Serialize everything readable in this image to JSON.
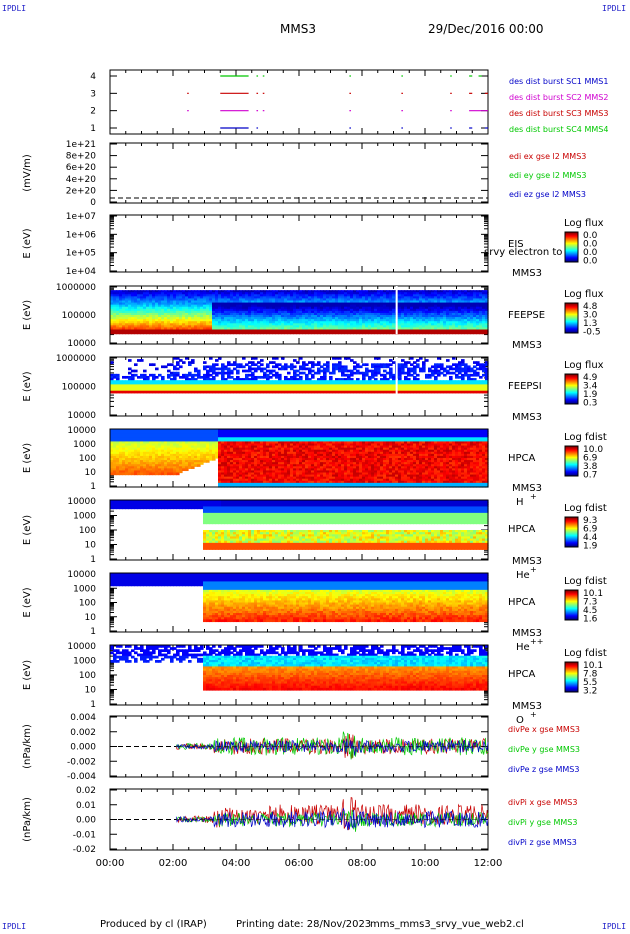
{
  "corner_labels": [
    "IPDLI",
    "IPDLI",
    "IPDLI",
    "IPDLI"
  ],
  "header": {
    "spacecraft": "MMS3",
    "date": "29/Dec/2016 00:00"
  },
  "footer": {
    "produced_by": "Produced by cl (IRAP)",
    "printing_date": "Printing date: 28/Nov/2023",
    "filename": "mms_mms3_srvy_vue_web2.cl"
  },
  "colors": {
    "c1": "#0000c8",
    "c2": "#c80000",
    "c3": "#d000d0",
    "c4": "#00c800",
    "black": "#000000"
  },
  "time_axis": {
    "start": "00:00",
    "end": "12:00",
    "ticks": [
      "00:00",
      "02:00",
      "04:00",
      "06:00",
      "08:00",
      "10:00",
      "12:00"
    ]
  },
  "chart_data": [
    {
      "id": "burst",
      "type": "scatter",
      "yticks": [
        "4",
        "3",
        "2",
        "1"
      ],
      "series": [
        {
          "name": "des dist burst SC1 MMS1",
          "color": "#0000c8",
          "y": 1,
          "segments": [
            [
              3.5,
              4.4
            ],
            [
              4.65,
              4.7
            ],
            [
              7.6,
              7.65
            ],
            [
              9.25,
              9.3
            ],
            [
              10.8,
              10.85
            ],
            [
              11.4,
              11.5
            ],
            [
              11.9,
              12
            ]
          ]
        },
        {
          "name": "des dist burst SC2 MMS2",
          "color": "#d000d0",
          "y": 2,
          "segments": [
            [
              2.45,
              2.5
            ],
            [
              3.5,
              4.4
            ],
            [
              4.65,
              4.7
            ],
            [
              4.85,
              4.9
            ],
            [
              7.6,
              7.65
            ],
            [
              9.25,
              9.3
            ],
            [
              10.8,
              10.85
            ],
            [
              11.4,
              12
            ]
          ]
        },
        {
          "name": "des dist burst SC3 MMS3",
          "color": "#c80000",
          "y": 3,
          "segments": [
            [
              2.45,
              2.5
            ],
            [
              3.5,
              4.4
            ],
            [
              4.65,
              4.7
            ],
            [
              4.85,
              4.9
            ],
            [
              7.6,
              7.65
            ],
            [
              9.25,
              9.3
            ],
            [
              10.8,
              10.85
            ],
            [
              11.4,
              11.5
            ],
            [
              11.9,
              12
            ]
          ]
        },
        {
          "name": "des dist burst SC4 MMS4",
          "color": "#00c800",
          "y": 4,
          "segments": [
            [
              3.5,
              4.4
            ],
            [
              4.65,
              4.7
            ],
            [
              4.85,
              4.9
            ],
            [
              7.6,
              7.65
            ],
            [
              9.25,
              9.3
            ],
            [
              10.8,
              10.85
            ],
            [
              11.4,
              11.5
            ],
            [
              11.7,
              11.8
            ]
          ]
        }
      ]
    },
    {
      "id": "edi",
      "type": "line",
      "ylabel": "(mV/m)",
      "yticks": [
        "1e+21",
        "8e+20",
        "6e+20",
        "4e+20",
        "2e+20",
        "0"
      ],
      "series_labels": [
        {
          "name": "edi ex gse l2 MMS3",
          "color": "#c80000"
        },
        {
          "name": "edi ey gse l2 MMS3",
          "color": "#00c800"
        },
        {
          "name": "edi ez gse l2 MMS3",
          "color": "#0000c8"
        }
      ]
    },
    {
      "id": "eis",
      "type": "heatmap",
      "ylabel": "E (eV)",
      "yticks": [
        "1e+07",
        "1e+06",
        "1e+05",
        "1e+04"
      ],
      "inst": "EIS",
      "sc": "MMS3",
      "overlay": "srvy electron to",
      "cb_title": "Log flux",
      "cb_values": [
        "0.0",
        "0.0",
        "0.0",
        "0.0"
      ]
    },
    {
      "id": "feepse",
      "type": "heatmap",
      "ylabel": "E (eV)",
      "yticks": [
        "1000000",
        "100000",
        "10000"
      ],
      "inst": "FEEPSE",
      "sc": "MMS3",
      "cb_title": "Log flux",
      "cb_values": [
        "4.8",
        "3.0",
        "1.3",
        "-0.5"
      ]
    },
    {
      "id": "feepsi",
      "type": "heatmap",
      "ylabel": "E (eV)",
      "yticks": [
        "1000000",
        "100000",
        "10000"
      ],
      "inst": "FEEPSI",
      "sc": "MMS3",
      "cb_title": "Log flux",
      "cb_values": [
        "4.9",
        "3.4",
        "1.9",
        "0.3"
      ]
    },
    {
      "id": "hpca_h",
      "type": "heatmap",
      "ylabel": "E (eV)",
      "yticks": [
        "10000",
        "1000",
        "100",
        "10",
        "1"
      ],
      "inst": "HPCA",
      "sc": "MMS3",
      "species": "H",
      "species_sup": "+",
      "cb_title": "Log fdist",
      "cb_values": [
        "10.0",
        "6.9",
        "3.8",
        "0.7"
      ]
    },
    {
      "id": "hpca_he1",
      "type": "heatmap",
      "ylabel": "E (eV)",
      "yticks": [
        "10000",
        "1000",
        "100",
        "10",
        "1"
      ],
      "inst": "HPCA",
      "sc": "MMS3",
      "species": "He",
      "species_sup": "+",
      "cb_title": "Log fdist",
      "cb_values": [
        "9.3",
        "6.9",
        "4.4",
        "1.9"
      ]
    },
    {
      "id": "hpca_he2",
      "type": "heatmap",
      "ylabel": "E (eV)",
      "yticks": [
        "10000",
        "1000",
        "100",
        "10",
        "1"
      ],
      "inst": "HPCA",
      "sc": "MMS3",
      "species": "He",
      "species_sup": "++",
      "cb_title": "Log fdist",
      "cb_values": [
        "10.1",
        "7.3",
        "4.5",
        "1.6"
      ]
    },
    {
      "id": "hpca_o",
      "type": "heatmap",
      "ylabel": "E (eV)",
      "yticks": [
        "10000",
        "1000",
        "100",
        "10",
        "1"
      ],
      "inst": "HPCA",
      "sc": "MMS3",
      "species": "O",
      "species_sup": "+",
      "cb_title": "Log fdist",
      "cb_values": [
        "10.1",
        "7.8",
        "5.5",
        "3.2"
      ]
    },
    {
      "id": "divpe",
      "type": "line",
      "ylabel": "(nPa/km)",
      "yticks": [
        "0.004",
        "0.002",
        "0.000",
        "-0.002",
        "-0.004"
      ],
      "ylim": [
        -0.005,
        0.005
      ],
      "series_labels": [
        {
          "name": "divPe x gse MMS3",
          "color": "#c80000"
        },
        {
          "name": "divPe y gse MMS3",
          "color": "#00c800"
        },
        {
          "name": "divPe z gse MMS3",
          "color": "#0000c8"
        }
      ]
    },
    {
      "id": "divpi",
      "type": "line",
      "ylabel": "(nPa/km)",
      "yticks": [
        "0.02",
        "0.01",
        "0.00",
        "-0.01",
        "-0.02"
      ],
      "ylim": [
        -0.025,
        0.025
      ],
      "series_labels": [
        {
          "name": "divPi x gse MMS3",
          "color": "#c80000"
        },
        {
          "name": "divPi y gse MMS3",
          "color": "#00c800"
        },
        {
          "name": "divPi z gse MMS3",
          "color": "#0000c8"
        }
      ]
    }
  ]
}
